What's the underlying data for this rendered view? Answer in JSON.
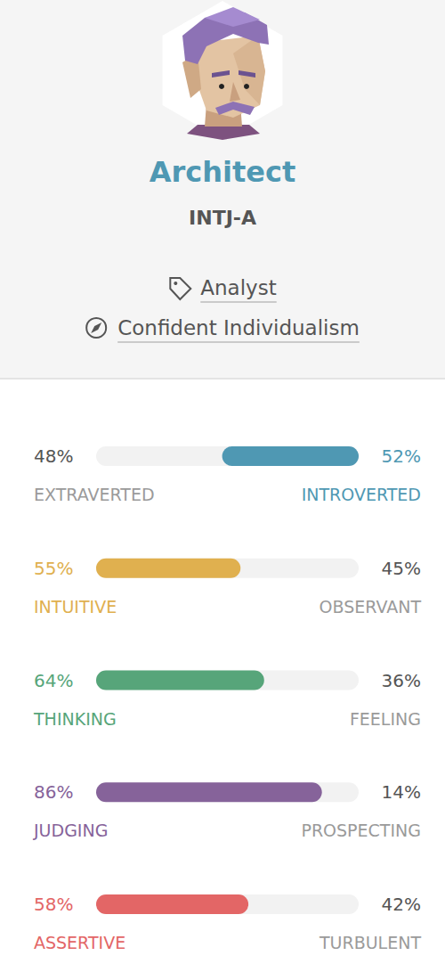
{
  "header": {
    "title": "Architect",
    "code": "INTJ-A",
    "tags": [
      "Analyst",
      "Confident Individualism"
    ]
  },
  "chart_data": {
    "type": "bar",
    "orientation": "horizontal",
    "stacked": true,
    "tick_labels": false,
    "xlim": [
      0,
      100
    ],
    "rows": [
      {
        "left_label": "EXTRAVERTED",
        "left_value": 48,
        "left_value_label": "48%",
        "right_label": "INTROVERTED",
        "right_value": 52,
        "right_value_label": "52%",
        "color": "#4f98b3"
      },
      {
        "left_label": "INTUITIVE",
        "left_value": 55,
        "left_value_label": "55%",
        "right_label": "OBSERVANT",
        "right_value": 45,
        "right_value_label": "45%",
        "color": "#e0b04f"
      },
      {
        "left_label": "THINKING",
        "left_value": 64,
        "left_value_label": "64%",
        "right_label": "FEELING",
        "right_value": 36,
        "right_value_label": "36%",
        "color": "#57a57a"
      },
      {
        "left_label": "JUDGING",
        "left_value": 86,
        "left_value_label": "86%",
        "right_label": "PROSPECTING",
        "right_value": 14,
        "right_value_label": "14%",
        "color": "#86639a"
      },
      {
        "left_label": "ASSERTIVE",
        "left_value": 58,
        "left_value_label": "58%",
        "right_label": "TURBULENT",
        "right_value": 42,
        "right_value_label": "42%",
        "color": "#e36666"
      }
    ]
  }
}
